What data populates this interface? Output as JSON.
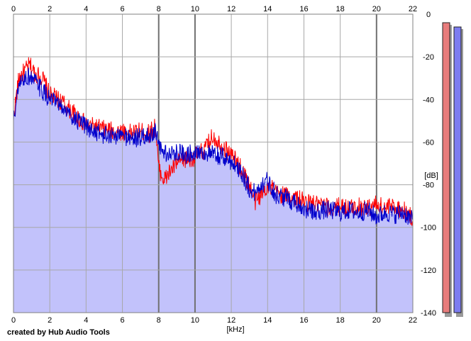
{
  "credit": "created by Hub Audio Tools",
  "chart_data": {
    "type": "line",
    "title": "",
    "xlabel": "[kHz]",
    "ylabel": "[dB]",
    "xlim": [
      0,
      22
    ],
    "ylim": [
      -140,
      0
    ],
    "x_ticks": [
      0,
      2,
      4,
      6,
      8,
      10,
      12,
      14,
      16,
      18,
      20,
      22
    ],
    "y_ticks": [
      0,
      -20,
      -40,
      -60,
      -80,
      -100,
      -120,
      -140
    ],
    "grid": true,
    "y_axis_side": "right",
    "x_tick_labels_position": "top-and-bottom",
    "background_fill": "#c2c2fb",
    "series": [
      {
        "color": "#ff0000",
        "x": [
          0,
          0.3,
          0.6,
          0.9,
          1.2,
          1.6,
          2.0,
          2.5,
          3.0,
          3.5,
          4.0,
          4.5,
          5.0,
          5.5,
          6.0,
          6.5,
          7.0,
          7.5,
          7.8,
          8.0,
          8.3,
          8.7,
          9.0,
          9.5,
          10.0,
          10.5,
          11.0,
          11.5,
          12.0,
          12.5,
          13.0,
          13.3,
          13.6,
          14.0,
          14.5,
          15.0,
          15.5,
          16.0,
          16.5,
          17.0,
          17.5,
          18.0,
          18.5,
          19.0,
          19.5,
          20.0,
          20.5,
          21.0,
          21.5,
          22.0
        ],
        "y": [
          -48,
          -30,
          -27,
          -24,
          -28,
          -30,
          -38,
          -40,
          -44,
          -48,
          -52,
          -53,
          -54,
          -55,
          -55,
          -56,
          -55,
          -56,
          -52,
          -72,
          -78,
          -73,
          -70,
          -68,
          -67,
          -64,
          -57,
          -62,
          -66,
          -72,
          -80,
          -88,
          -85,
          -80,
          -84,
          -85,
          -86,
          -88,
          -89,
          -90,
          -91,
          -90,
          -91,
          -90,
          -91,
          -89,
          -91,
          -90,
          -92,
          -96
        ]
      },
      {
        "color": "#0000cc",
        "x": [
          0,
          0.3,
          0.6,
          0.9,
          1.2,
          1.6,
          2.0,
          2.5,
          3.0,
          3.5,
          4.0,
          4.5,
          5.0,
          5.5,
          6.0,
          6.5,
          7.0,
          7.5,
          7.8,
          8.0,
          8.3,
          8.7,
          9.0,
          9.5,
          10.0,
          10.5,
          11.0,
          11.5,
          12.0,
          12.5,
          13.0,
          13.3,
          13.6,
          14.0,
          14.5,
          15.0,
          15.5,
          16.0,
          16.5,
          17.0,
          17.5,
          18.0,
          18.5,
          19.0,
          19.5,
          20.0,
          20.5,
          21.0,
          21.5,
          22.0
        ],
        "y": [
          -50,
          -34,
          -30,
          -29,
          -32,
          -36,
          -40,
          -43,
          -46,
          -50,
          -53,
          -55,
          -57,
          -57,
          -57,
          -58,
          -58,
          -57,
          -55,
          -62,
          -65,
          -66,
          -64,
          -66,
          -64,
          -65,
          -66,
          -67,
          -69,
          -73,
          -82,
          -84,
          -80,
          -78,
          -85,
          -86,
          -88,
          -91,
          -93,
          -92,
          -92,
          -93,
          -92,
          -93,
          -92,
          -95,
          -93,
          -94,
          -93,
          -97
        ]
      }
    ],
    "level_meters": [
      {
        "color": "#e87c7c",
        "level_db": -2
      },
      {
        "color": "#7c7cf0",
        "level_db": -4
      }
    ]
  }
}
